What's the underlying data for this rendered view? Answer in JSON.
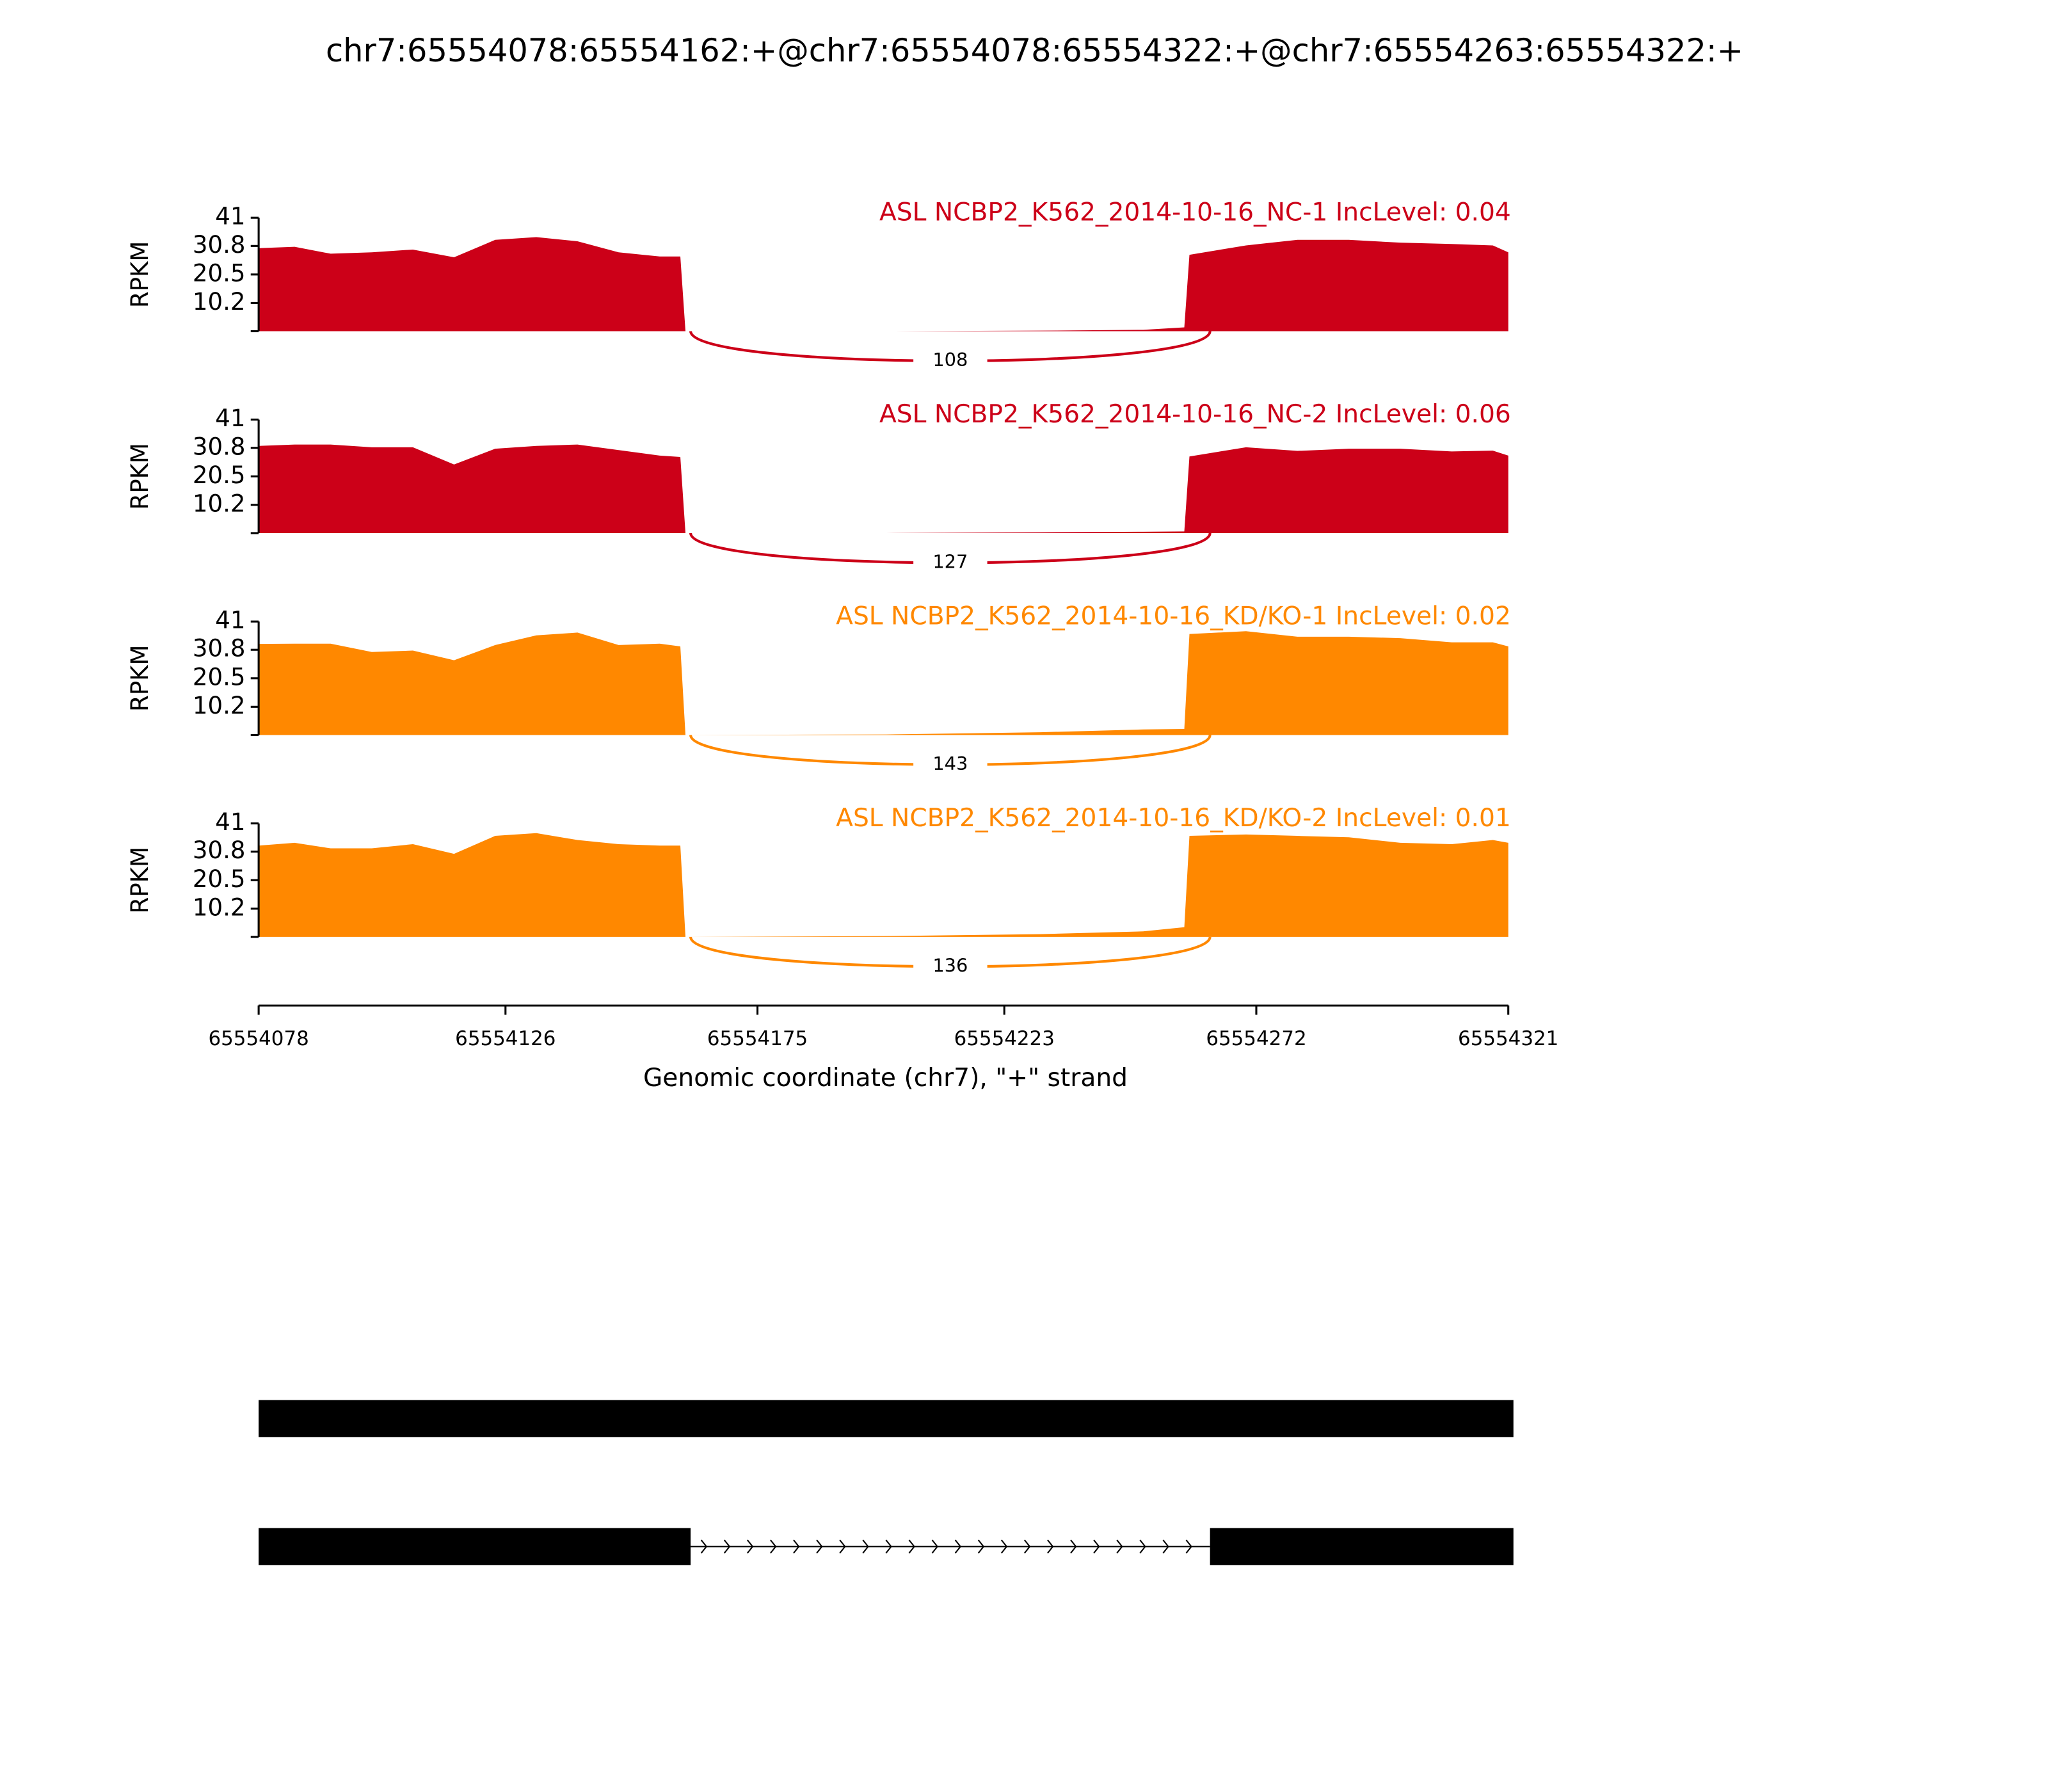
{
  "chart_data": {
    "type": "sashimi",
    "title": "chr7:65554078:65554162:+@chr7:65554078:65554322:+@chr7:65554263:65554322:+",
    "xlabel": "Genomic coordinate (chr7), \"+\" strand",
    "ylabel": "RPKM",
    "xlim": [
      65554078,
      65554321
    ],
    "xticks": [
      65554078,
      65554126,
      65554175,
      65554223,
      65554272,
      65554321
    ],
    "ylim": [
      0,
      41
    ],
    "yticks": [
      10.2,
      20.5,
      30.8,
      41
    ],
    "x": [
      65554078,
      65554085,
      65554092,
      65554100,
      65554108,
      65554116,
      65554124,
      65554132,
      65554140,
      65554148,
      65554156,
      65554160,
      65554161,
      65554200,
      65554230,
      65554250,
      65554258,
      65554259,
      65554270,
      65554280,
      65554290,
      65554300,
      65554310,
      65554318,
      65554321
    ],
    "junction": [
      65554162,
      65554263
    ],
    "tracks": [
      {
        "name": "ASL NCBP2_K562_2014-10-16_NC-1 IncLevel: 0.04",
        "color": "#cc0018",
        "junction_count": 108,
        "values": [
          30,
          30.5,
          28,
          28.5,
          29.5,
          26.7,
          33,
          34,
          32.5,
          28.5,
          27,
          27,
          0,
          0,
          0.2,
          0.5,
          1.4,
          27.6,
          31,
          33,
          33,
          32,
          31.5,
          31,
          28.5
        ]
      },
      {
        "name": "ASL NCBP2_K562_2014-10-16_NC-2 IncLevel: 0.06",
        "color": "#cc0018",
        "junction_count": 127,
        "values": [
          31.5,
          32,
          32,
          31,
          31,
          24.8,
          30.5,
          31.5,
          32,
          30,
          28,
          27.5,
          0,
          0,
          0.3,
          0.5,
          0.6,
          27.7,
          31,
          29.7,
          30.5,
          30.5,
          29.5,
          29.8,
          28
        ]
      },
      {
        "name": "ASL NCBP2_K562_2014-10-16_KD/KO-1 IncLevel: 0.02",
        "color": "#ff8800",
        "junction_count": 143,
        "values": [
          32.9,
          33,
          33,
          30,
          30.5,
          27,
          32.5,
          36,
          37,
          32.5,
          33,
          32,
          0,
          0.2,
          1,
          2,
          2.2,
          36.5,
          37.5,
          35.5,
          35.5,
          35,
          33.5,
          33.5,
          32
        ]
      },
      {
        "name": "ASL NCBP2_K562_2014-10-16_KD/KO-2 IncLevel: 0.01",
        "color": "#ff8800",
        "junction_count": 136,
        "values": [
          33,
          34,
          32,
          32,
          33.5,
          30,
          36.5,
          37.5,
          35,
          33.5,
          33,
          33,
          0,
          0.3,
          1,
          2,
          3.5,
          36.5,
          37,
          36.5,
          36,
          34,
          33.5,
          35,
          34
        ]
      }
    ],
    "transcripts": [
      {
        "exons": [
          [
            65554078,
            65554322
          ]
        ]
      },
      {
        "exons": [
          [
            65554078,
            65554162
          ],
          [
            65554263,
            65554322
          ]
        ]
      }
    ]
  }
}
